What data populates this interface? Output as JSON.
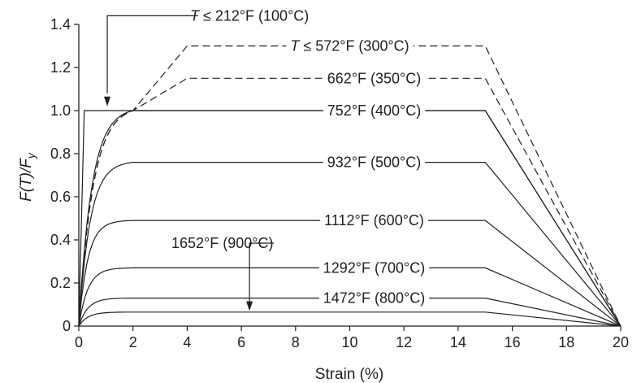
{
  "chart_data": {
    "type": "line",
    "xlabel": "Strain (%)",
    "ylabel_main": "F(T)/F",
    "ylabel_sub": "y",
    "xlim": [
      0,
      20
    ],
    "ylim": [
      0,
      1.4
    ],
    "xticks": [
      0,
      2,
      4,
      6,
      8,
      10,
      12,
      14,
      16,
      18,
      20
    ],
    "yticks": [
      0,
      0.2,
      0.4,
      0.6,
      0.8,
      1.0,
      1.2,
      1.4
    ],
    "ytick_labels": [
      "0",
      "0.2",
      "0.4",
      "0.6",
      "0.8",
      "1.0",
      "1.2",
      "1.4"
    ],
    "grid": false,
    "series": [
      {
        "name": "T ≤ 212°F (100°C)",
        "plateau": 1.0,
        "yield_strain": 0.2,
        "end_plateau": 15,
        "rupture": 20,
        "style": "solid"
      },
      {
        "name": "T ≤ 572°F (300°C)",
        "plateau": 1.3,
        "yield_strain": 4,
        "end_plateau": 15,
        "rupture": 20,
        "style": "dashed"
      },
      {
        "name": "662°F (350°C)",
        "plateau": 1.15,
        "yield_strain": 4,
        "end_plateau": 15,
        "rupture": 20,
        "style": "dashed"
      },
      {
        "name": "752°F (400°C)",
        "plateau": 1.0,
        "yield_strain": 2,
        "end_plateau": 15,
        "rupture": 20,
        "style": "solid"
      },
      {
        "name": "932°F (500°C)",
        "plateau": 0.76,
        "yield_strain": 2,
        "end_plateau": 15,
        "rupture": 20,
        "style": "solid"
      },
      {
        "name": "1112°F (600°C)",
        "plateau": 0.49,
        "yield_strain": 2,
        "end_plateau": 15,
        "rupture": 20,
        "style": "solid"
      },
      {
        "name": "1292°F (700°C)",
        "plateau": 0.27,
        "yield_strain": 2,
        "end_plateau": 15,
        "rupture": 20,
        "style": "solid"
      },
      {
        "name": "1472°F (800°C)",
        "plateau": 0.13,
        "yield_strain": 2,
        "end_plateau": 15,
        "rupture": 20,
        "style": "solid"
      },
      {
        "name": "1652°F (900°C)",
        "plateau": 0.065,
        "yield_strain": 2,
        "end_plateau": 15,
        "rupture": 20,
        "style": "solid"
      }
    ]
  }
}
